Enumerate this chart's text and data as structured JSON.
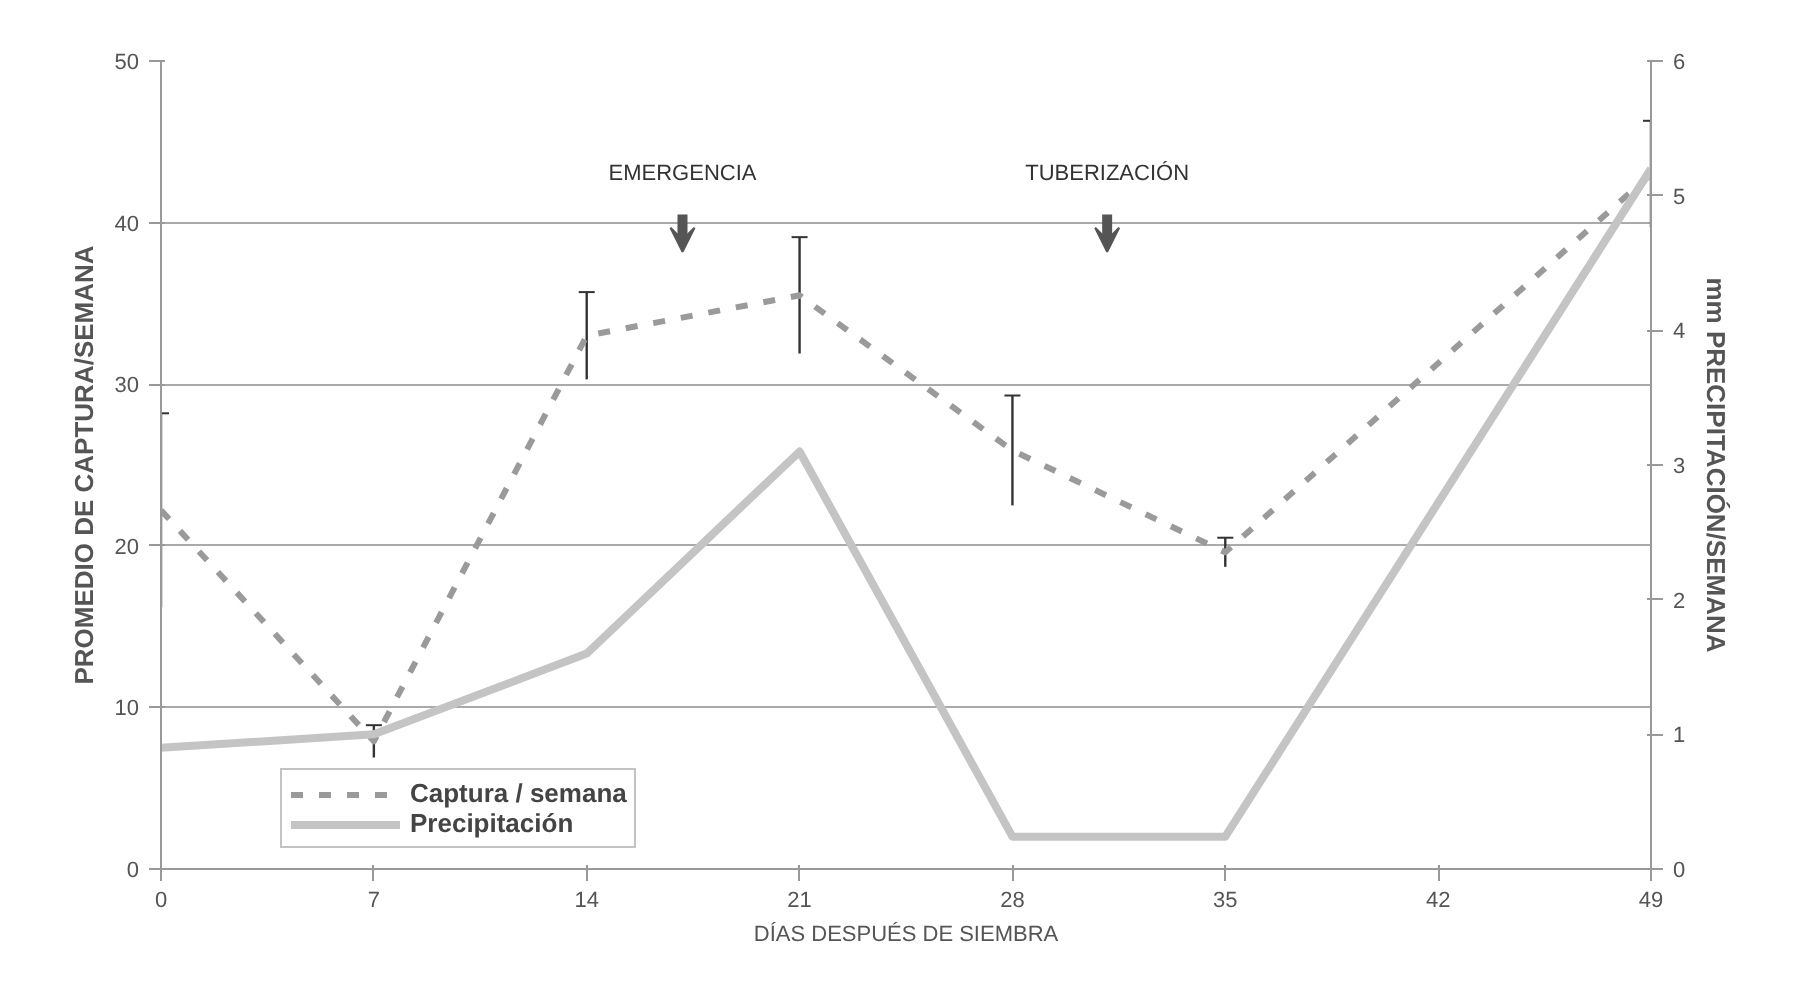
{
  "chart_data": {
    "type": "line",
    "xlabel": "DÍAS DESPUÉS DE SIEMBRA",
    "ylabel": "PROMEDIO DE CAPTURA/SEMANA",
    "y2label": "mm PRECIPITACIÓN/SEMANA",
    "x": [
      0,
      7,
      14,
      21,
      28,
      35,
      49
    ],
    "series": [
      {
        "name": "Captura / semana",
        "color": "#9a9a9a",
        "line_style": "dashed",
        "values": [
          22.2,
          7.9,
          33.0,
          35.5,
          25.9,
          19.6,
          43.0
        ],
        "errors": [
          6.0,
          1.0,
          2.7,
          3.6,
          3.4,
          0.9,
          3.3
        ]
      },
      {
        "name": "Precipitación",
        "color": "#c4c4c4",
        "line_style": "solid",
        "axis": "y2",
        "values": [
          0.9,
          1.0,
          1.6,
          3.1,
          0.24,
          0.24,
          5.2
        ]
      }
    ],
    "annotations": [
      "EMERGENCIA",
      "TUBERIZACIÓN"
    ],
    "xlim": [
      0,
      49
    ],
    "xticks": [
      0,
      7,
      14,
      21,
      28,
      35,
      42,
      49
    ],
    "ylim": [
      0,
      50
    ],
    "yticks": [
      0,
      10,
      20,
      30,
      40,
      50
    ],
    "y2lim": [
      0,
      6
    ],
    "y2ticks": [
      0,
      1,
      2,
      3,
      4,
      5,
      6
    ],
    "grid": "y",
    "legend": "bottom left",
    "marker": "none"
  }
}
